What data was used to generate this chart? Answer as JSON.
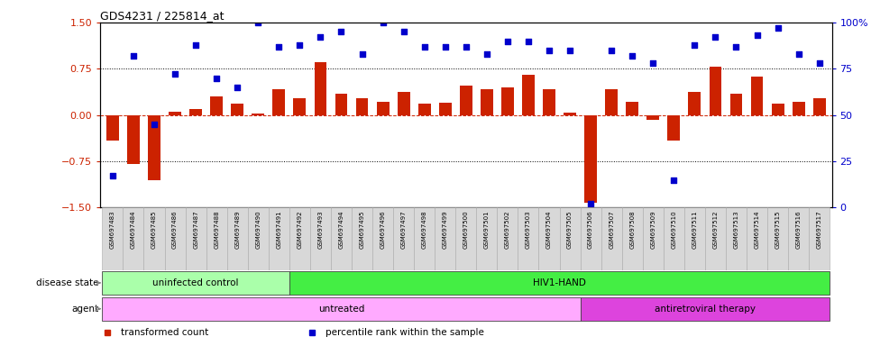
{
  "title": "GDS4231 / 225814_at",
  "samples": [
    "GSM697483",
    "GSM697484",
    "GSM697485",
    "GSM697486",
    "GSM697487",
    "GSM697488",
    "GSM697489",
    "GSM697490",
    "GSM697491",
    "GSM697492",
    "GSM697493",
    "GSM697494",
    "GSM697495",
    "GSM697496",
    "GSM697497",
    "GSM697498",
    "GSM697499",
    "GSM697500",
    "GSM697501",
    "GSM697502",
    "GSM697503",
    "GSM697504",
    "GSM697505",
    "GSM697506",
    "GSM697507",
    "GSM697508",
    "GSM697509",
    "GSM697510",
    "GSM697511",
    "GSM697512",
    "GSM697513",
    "GSM697514",
    "GSM697515",
    "GSM697516",
    "GSM697517"
  ],
  "transformed_count": [
    -0.42,
    -0.8,
    -1.05,
    0.06,
    0.1,
    0.3,
    0.18,
    0.03,
    0.42,
    0.27,
    0.86,
    0.35,
    0.27,
    0.22,
    0.38,
    0.18,
    0.2,
    0.48,
    0.42,
    0.45,
    0.65,
    0.42,
    0.04,
    -1.42,
    0.42,
    0.22,
    -0.08,
    -0.42,
    0.38,
    0.78,
    0.35,
    0.62,
    0.18,
    0.22,
    0.28
  ],
  "percentile_rank": [
    17,
    82,
    45,
    72,
    88,
    70,
    65,
    100,
    87,
    88,
    92,
    95,
    83,
    100,
    95,
    87,
    87,
    87,
    83,
    90,
    90,
    85,
    85,
    2,
    85,
    82,
    78,
    15,
    88,
    92,
    87,
    93,
    97,
    83,
    78
  ],
  "bar_color": "#cc2200",
  "scatter_color": "#0000cc",
  "ylim_left": [
    -1.5,
    1.5
  ],
  "ylim_right": [
    0,
    100
  ],
  "yticks_left": [
    -1.5,
    -0.75,
    0.0,
    0.75,
    1.5
  ],
  "yticks_right": [
    0,
    25,
    50,
    75,
    100
  ],
  "disease_state_groups": [
    {
      "label": "uninfected control",
      "start": 0,
      "end": 9,
      "color": "#aaffaa"
    },
    {
      "label": "HIV1-HAND",
      "start": 9,
      "end": 35,
      "color": "#44ee44"
    }
  ],
  "agent_groups": [
    {
      "label": "untreated",
      "start": 0,
      "end": 23,
      "color": "#ffaaff"
    },
    {
      "label": "antiretroviral therapy",
      "start": 23,
      "end": 35,
      "color": "#dd44dd"
    }
  ],
  "legend_items": [
    {
      "label": "transformed count",
      "color": "#cc2200"
    },
    {
      "label": "percentile rank within the sample",
      "color": "#0000cc"
    }
  ],
  "background_color": "#ffffff",
  "row_label_disease": "disease state",
  "row_label_agent": "agent",
  "arrow_color": "#888888"
}
